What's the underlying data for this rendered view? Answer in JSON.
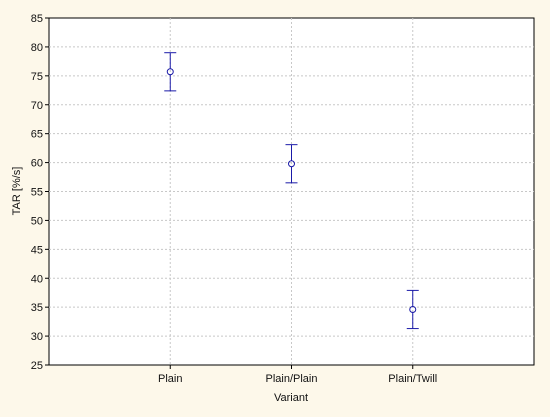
{
  "chart_data": {
    "type": "scatter",
    "title": "",
    "xlabel": "Variant",
    "ylabel": "TAR  [%/s]",
    "categories": [
      "Plain",
      "Plain/Plain",
      "Plain/Twill"
    ],
    "series": [
      {
        "values": [
          75.7,
          59.8,
          34.6
        ],
        "lower": [
          72.4,
          56.5,
          31.3
        ],
        "upper": [
          79.0,
          63.1,
          37.9
        ]
      }
    ],
    "ylim": [
      25,
      85
    ],
    "yticks": [
      25,
      30,
      35,
      40,
      45,
      50,
      55,
      60,
      65,
      70,
      75,
      80,
      85
    ],
    "grid": true,
    "legend": "none",
    "colors": {
      "background": "#fdf8ea",
      "plot_bg": "#ffffff",
      "grid": "#c8c8c8",
      "marker": "#1a1aa8"
    }
  }
}
